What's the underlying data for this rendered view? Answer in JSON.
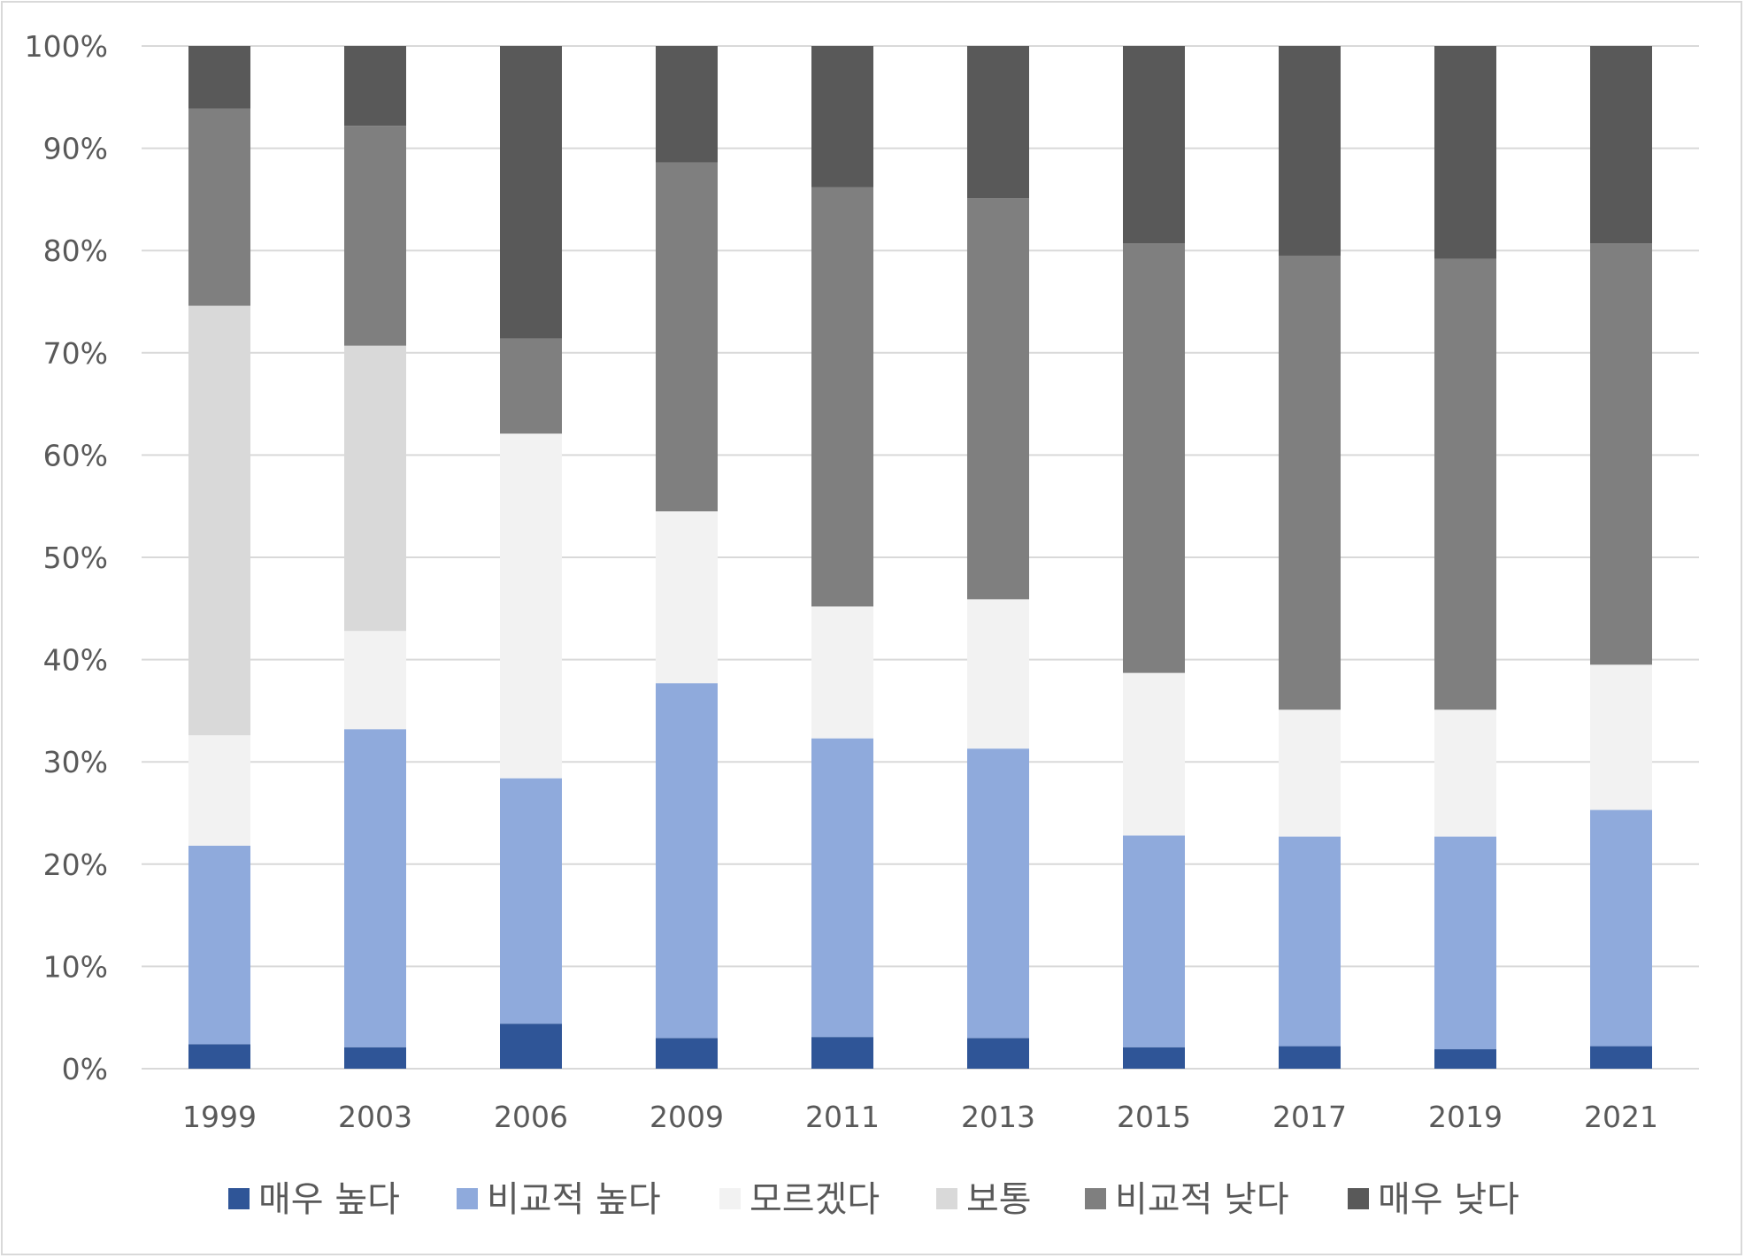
{
  "chart_data": {
    "type": "bar",
    "stacked": true,
    "percent_stacked": true,
    "categories": [
      "1999",
      "2003",
      "2006",
      "2009",
      "2011",
      "2013",
      "2015",
      "2017",
      "2019",
      "2021"
    ],
    "series": [
      {
        "name": "매우 높다",
        "color": "#2f5597",
        "values": [
          2.4,
          2.1,
          4.4,
          3.0,
          3.1,
          3.0,
          2.1,
          2.2,
          1.9,
          2.2
        ]
      },
      {
        "name": "비교적 높다",
        "color": "#8faadc",
        "values": [
          19.4,
          31.1,
          24.0,
          34.7,
          29.2,
          28.3,
          20.7,
          20.5,
          20.8,
          23.1
        ]
      },
      {
        "name": "모르겠다",
        "color": "#f2f2f2",
        "values": [
          10.8,
          9.6,
          33.7,
          16.8,
          12.9,
          14.6,
          15.9,
          12.4,
          12.4,
          14.2
        ]
      },
      {
        "name": "보통",
        "color": "#d9d9d9",
        "values": [
          42.0,
          27.9,
          0.0,
          0.0,
          0.0,
          0.0,
          0.0,
          0.0,
          0.0,
          0.0
        ]
      },
      {
        "name": "비교적 낮다",
        "color": "#7f7f7f",
        "values": [
          19.3,
          21.5,
          9.3,
          34.1,
          41.0,
          39.2,
          42.0,
          44.4,
          44.1,
          41.2
        ]
      },
      {
        "name": "매우 낮다",
        "color": "#595959",
        "values": [
          6.1,
          7.8,
          28.6,
          11.4,
          13.8,
          14.9,
          19.3,
          20.5,
          20.8,
          19.3
        ]
      }
    ],
    "y_ticks": [
      "0%",
      "10%",
      "20%",
      "30%",
      "40%",
      "50%",
      "60%",
      "70%",
      "80%",
      "90%",
      "100%"
    ],
    "ylim": [
      0,
      100
    ],
    "grid": true,
    "legend_position": "bottom",
    "title": "",
    "xlabel": "",
    "ylabel": ""
  }
}
